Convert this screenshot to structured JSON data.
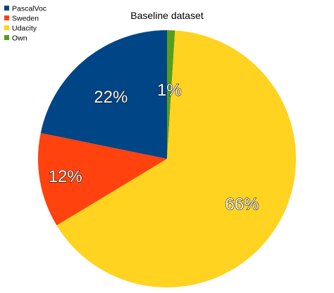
{
  "chart_data": {
    "type": "pie",
    "title": "Baseline dataset",
    "legend_position": "top-left",
    "slices": [
      {
        "name": "PascalVoc",
        "value": 22,
        "label": "22%",
        "color": "#004586"
      },
      {
        "name": "Sweden",
        "value": 12,
        "label": "12%",
        "color": "#FF420E"
      },
      {
        "name": "Udacity",
        "value": 66,
        "label": "66%",
        "color": "#FFD320"
      },
      {
        "name": "Own",
        "value": 1,
        "label": "1%",
        "color": "#579D1C"
      }
    ]
  }
}
